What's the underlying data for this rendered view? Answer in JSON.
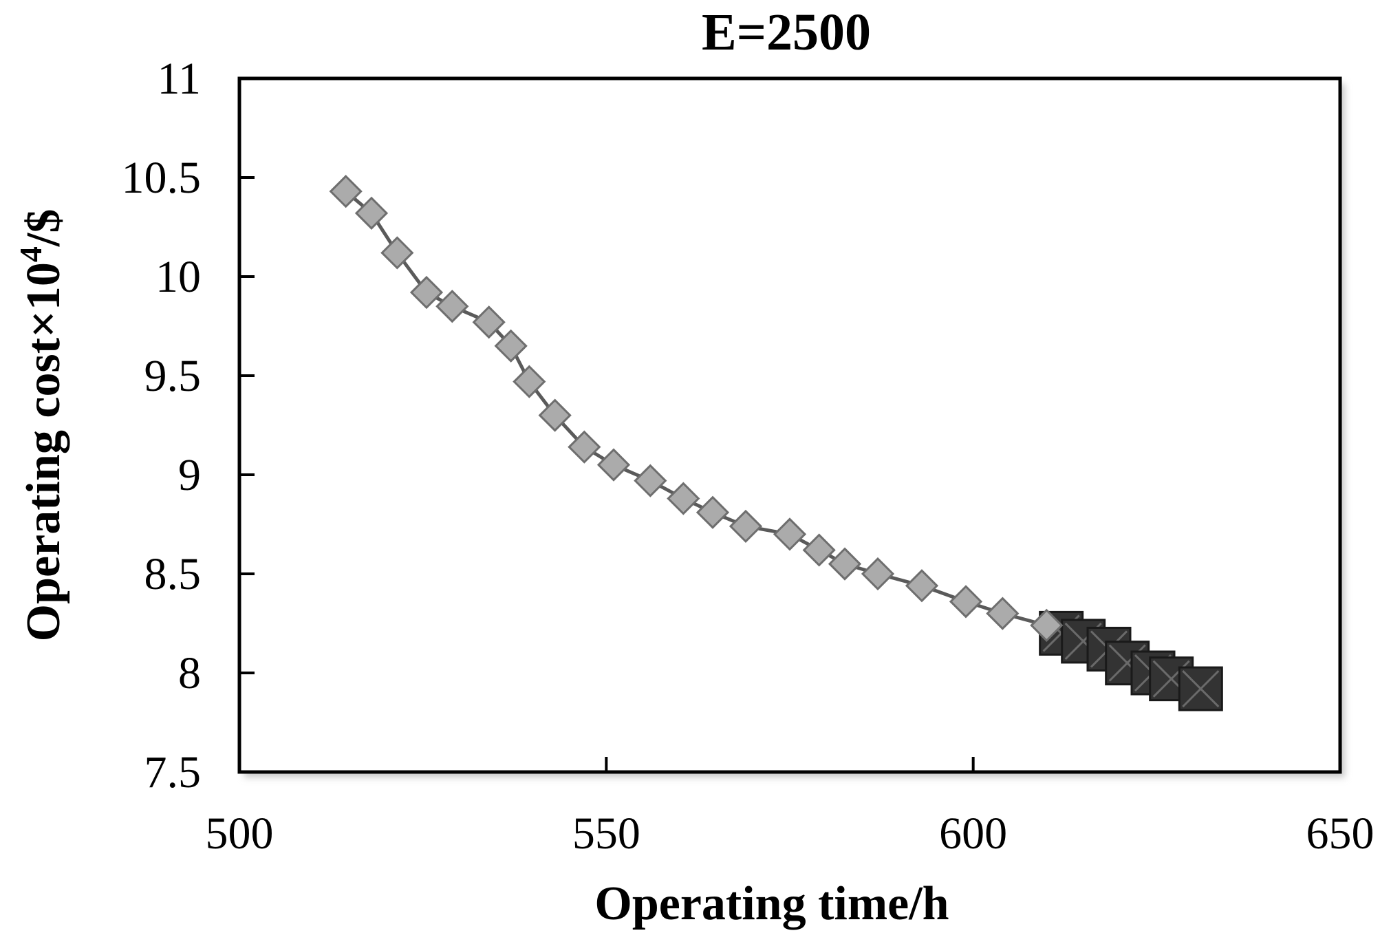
{
  "chart_data": {
    "type": "scatter",
    "title": "E=2500",
    "xlabel": "Operating time/h",
    "ylabel": "Operating cost×10",
    "ylabel_sup": "4",
    "ylabel_suffix": "/$",
    "xlim": [
      500,
      650
    ],
    "ylim": [
      7.5,
      11
    ],
    "xticks": [
      500,
      550,
      600,
      650
    ],
    "yticks": [
      7.5,
      8,
      8.5,
      9,
      9.5,
      10,
      10.5,
      11
    ],
    "xtick_labels": [
      "500",
      "550",
      "600",
      "650"
    ],
    "ytick_labels": [
      "7.5",
      "8",
      "8.5",
      "9",
      "9.5",
      "10",
      "10.5",
      "11"
    ],
    "grid": false,
    "legend": "none",
    "series": [
      {
        "marker": "diamond",
        "color": "#ababab",
        "edge_color": "#6e6e6e",
        "line_color": "#5a5a5a",
        "x": [
          514.5,
          518,
          521.5,
          525.5,
          529,
          534,
          537,
          539.5,
          543,
          547,
          551,
          556,
          560.5,
          564.5,
          569,
          575,
          579,
          582.5,
          587,
          593,
          599,
          604,
          610
        ],
        "y": [
          10.43,
          10.32,
          10.12,
          9.92,
          9.85,
          9.77,
          9.65,
          9.47,
          9.3,
          9.14,
          9.05,
          8.97,
          8.88,
          8.81,
          8.74,
          8.7,
          8.62,
          8.55,
          8.5,
          8.44,
          8.36,
          8.3,
          8.24
        ]
      },
      {
        "marker": "square-x",
        "color": "#333333",
        "edge_color": "#1a1a1a",
        "x": [
          612,
          615,
          618.5,
          621,
          624.5,
          627,
          631
        ],
        "y": [
          8.2,
          8.16,
          8.12,
          8.05,
          8.0,
          7.97,
          7.92
        ]
      }
    ]
  }
}
